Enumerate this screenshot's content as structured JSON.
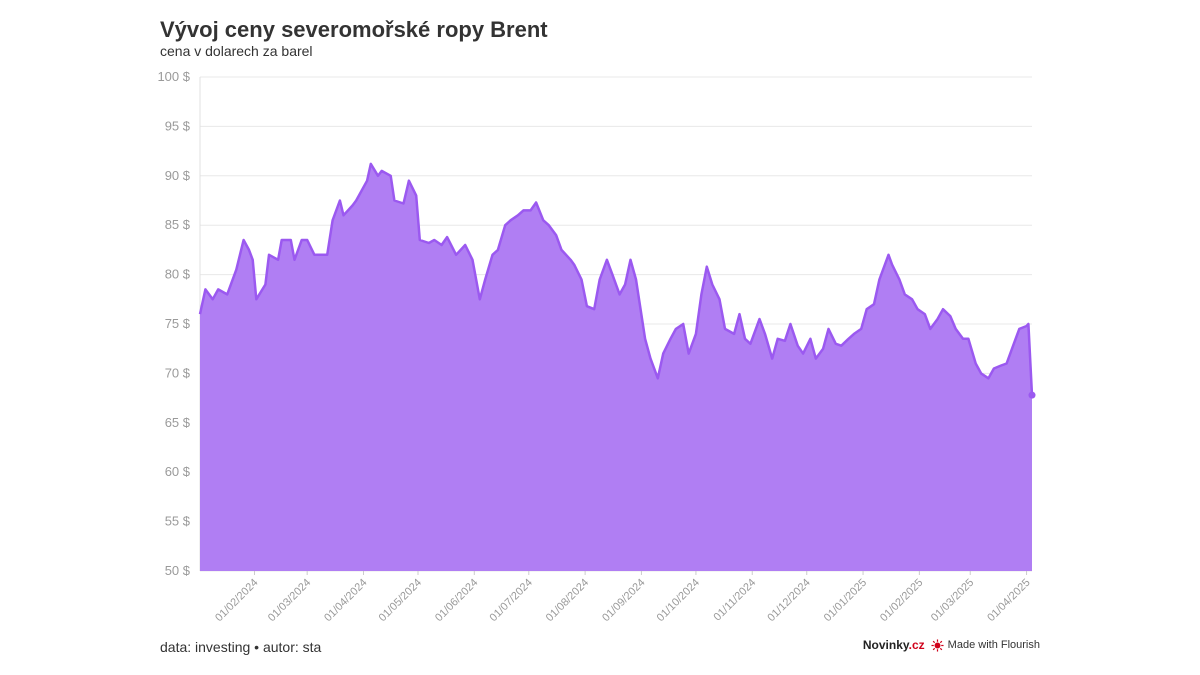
{
  "chart_data": {
    "type": "area",
    "title": "Vývoj ceny severomořské ropy Brent",
    "subtitle": "cena v dolarech za barel",
    "ylim": [
      50,
      100
    ],
    "y_ticks": [
      50,
      55,
      60,
      65,
      70,
      75,
      80,
      85,
      90,
      95,
      100
    ],
    "y_tick_suffix": " $",
    "x_ticks": [
      "01/02/2024",
      "01/03/2024",
      "01/04/2024",
      "01/05/2024",
      "01/06/2024",
      "01/07/2024",
      "01/08/2024",
      "01/09/2024",
      "01/10/2024",
      "01/11/2024",
      "01/12/2024",
      "01/01/2025",
      "01/02/2025",
      "01/03/2025",
      "01/04/2025"
    ],
    "grid": true,
    "fill_color": "#b07ef3",
    "line_color": "#9b59f0",
    "series": [
      {
        "points": [
          [
            "02/01/2024",
            76.0
          ],
          [
            "05/01/2024",
            78.5
          ],
          [
            "09/01/2024",
            77.5
          ],
          [
            "12/01/2024",
            78.5
          ],
          [
            "17/01/2024",
            78.0
          ],
          [
            "22/01/2024",
            80.5
          ],
          [
            "26/01/2024",
            83.5
          ],
          [
            "29/01/2024",
            82.5
          ],
          [
            "31/01/2024",
            81.5
          ],
          [
            "02/02/2024",
            77.5
          ],
          [
            "07/02/2024",
            79.0
          ],
          [
            "09/02/2024",
            82.0
          ],
          [
            "14/02/2024",
            81.5
          ],
          [
            "16/02/2024",
            83.5
          ],
          [
            "21/02/2024",
            83.5
          ],
          [
            "23/02/2024",
            81.5
          ],
          [
            "27/02/2024",
            83.5
          ],
          [
            "01/03/2024",
            83.5
          ],
          [
            "05/03/2024",
            82.0
          ],
          [
            "08/03/2024",
            82.0
          ],
          [
            "12/03/2024",
            82.0
          ],
          [
            "15/03/2024",
            85.5
          ],
          [
            "19/03/2024",
            87.5
          ],
          [
            "21/03/2024",
            86.0
          ],
          [
            "26/03/2024",
            87.0
          ],
          [
            "28/03/2024",
            87.5
          ],
          [
            "03/04/2024",
            89.5
          ],
          [
            "05/04/2024",
            91.2
          ],
          [
            "09/04/2024",
            90.0
          ],
          [
            "11/04/2024",
            90.5
          ],
          [
            "16/04/2024",
            90.0
          ],
          [
            "18/04/2024",
            87.5
          ],
          [
            "23/04/2024",
            87.2
          ],
          [
            "26/04/2024",
            89.5
          ],
          [
            "30/04/2024",
            88.0
          ],
          [
            "02/05/2024",
            83.5
          ],
          [
            "07/05/2024",
            83.2
          ],
          [
            "10/05/2024",
            83.5
          ],
          [
            "14/05/2024",
            83.0
          ],
          [
            "17/05/2024",
            83.8
          ],
          [
            "22/05/2024",
            82.0
          ],
          [
            "27/05/2024",
            83.0
          ],
          [
            "31/05/2024",
            81.5
          ],
          [
            "04/06/2024",
            77.5
          ],
          [
            "07/06/2024",
            79.5
          ],
          [
            "11/06/2024",
            82.0
          ],
          [
            "14/06/2024",
            82.5
          ],
          [
            "18/06/2024",
            85.0
          ],
          [
            "21/06/2024",
            85.5
          ],
          [
            "25/06/2024",
            86.0
          ],
          [
            "28/06/2024",
            86.5
          ],
          [
            "02/07/2024",
            86.5
          ],
          [
            "05/07/2024",
            87.3
          ],
          [
            "09/07/2024",
            85.5
          ],
          [
            "12/07/2024",
            85.0
          ],
          [
            "16/07/2024",
            84.0
          ],
          [
            "19/07/2024",
            82.5
          ],
          [
            "24/07/2024",
            81.5
          ],
          [
            "26/07/2024",
            81.0
          ],
          [
            "30/07/2024",
            79.5
          ],
          [
            "02/08/2024",
            76.8
          ],
          [
            "06/08/2024",
            76.5
          ],
          [
            "09/08/2024",
            79.5
          ],
          [
            "13/08/2024",
            81.5
          ],
          [
            "16/08/2024",
            80.0
          ],
          [
            "20/08/2024",
            78.0
          ],
          [
            "23/08/2024",
            79.0
          ],
          [
            "26/08/2024",
            81.5
          ],
          [
            "29/08/2024",
            79.5
          ],
          [
            "03/09/2024",
            73.5
          ],
          [
            "06/09/2024",
            71.5
          ],
          [
            "10/09/2024",
            69.5
          ],
          [
            "13/09/2024",
            72.0
          ],
          [
            "17/09/2024",
            73.5
          ],
          [
            "20/09/2024",
            74.5
          ],
          [
            "24/09/2024",
            75.0
          ],
          [
            "27/09/2024",
            72.0
          ],
          [
            "01/10/2024",
            74.0
          ],
          [
            "04/10/2024",
            78.0
          ],
          [
            "07/10/2024",
            80.8
          ],
          [
            "10/10/2024",
            79.0
          ],
          [
            "14/10/2024",
            77.5
          ],
          [
            "17/10/2024",
            74.5
          ],
          [
            "22/10/2024",
            74.0
          ],
          [
            "25/10/2024",
            76.0
          ],
          [
            "28/10/2024",
            73.5
          ],
          [
            "31/10/2024",
            73.0
          ],
          [
            "05/11/2024",
            75.5
          ],
          [
            "08/11/2024",
            74.0
          ],
          [
            "12/11/2024",
            71.5
          ],
          [
            "15/11/2024",
            73.5
          ],
          [
            "19/11/2024",
            73.3
          ],
          [
            "22/11/2024",
            75.0
          ],
          [
            "26/11/2024",
            72.8
          ],
          [
            "29/11/2024",
            72.0
          ],
          [
            "03/12/2024",
            73.5
          ],
          [
            "06/12/2024",
            71.5
          ],
          [
            "10/12/2024",
            72.5
          ],
          [
            "13/12/2024",
            74.5
          ],
          [
            "17/12/2024",
            73.0
          ],
          [
            "20/12/2024",
            72.8
          ],
          [
            "24/12/2024",
            73.5
          ],
          [
            "27/12/2024",
            74.0
          ],
          [
            "31/12/2024",
            74.5
          ],
          [
            "03/01/2025",
            76.5
          ],
          [
            "07/01/2025",
            77.0
          ],
          [
            "10/01/2025",
            79.5
          ],
          [
            "15/01/2025",
            82.0
          ],
          [
            "17/01/2025",
            81.0
          ],
          [
            "21/01/2025",
            79.5
          ],
          [
            "24/01/2025",
            78.0
          ],
          [
            "28/01/2025",
            77.5
          ],
          [
            "31/01/2025",
            76.5
          ],
          [
            "04/02/2025",
            76.0
          ],
          [
            "07/02/2025",
            74.5
          ],
          [
            "11/02/2025",
            75.5
          ],
          [
            "14/02/2025",
            76.5
          ],
          [
            "18/02/2025",
            75.8
          ],
          [
            "21/02/2025",
            74.5
          ],
          [
            "25/02/2025",
            73.5
          ],
          [
            "28/02/2025",
            73.5
          ],
          [
            "04/03/2025",
            71.0
          ],
          [
            "07/03/2025",
            70.0
          ],
          [
            "11/03/2025",
            69.5
          ],
          [
            "14/03/2025",
            70.5
          ],
          [
            "18/03/2025",
            70.8
          ],
          [
            "21/03/2025",
            71.0
          ],
          [
            "25/03/2025",
            73.0
          ],
          [
            "28/03/2025",
            74.5
          ],
          [
            "01/04/2025",
            74.8
          ],
          [
            "02/04/2025",
            75.0
          ],
          [
            "04/04/2025",
            67.8
          ]
        ]
      }
    ]
  },
  "footer": {
    "source": "data: investing • autor: sta",
    "brand_main": "Novinky",
    "brand_suffix": ".cz",
    "flourish_label": "Made with Flourish"
  }
}
